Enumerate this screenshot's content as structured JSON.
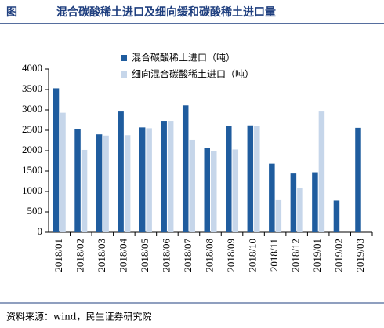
{
  "chart_data": {
    "type": "bar",
    "figure_label": "图",
    "title": "混合碳酸稀土进口及细向缓和碳酸稀土进口量",
    "source": "资料来源：wind，民生证券研究院",
    "categories": [
      "2018/01",
      "2018/02",
      "2018/03",
      "2018/04",
      "2018/05",
      "2018/06",
      "2018/07",
      "2018/08",
      "2018/09",
      "2018/10",
      "2018/11",
      "2018/12",
      "2019/01",
      "2019/02",
      "2019/03"
    ],
    "series": [
      {
        "name": "混合碳酸稀土进口（吨）",
        "color": "#1f5c9e",
        "values": [
          3530,
          2520,
          2400,
          2960,
          2570,
          2730,
          3110,
          2060,
          2600,
          2620,
          1680,
          1440,
          1470,
          780,
          2560
        ]
      },
      {
        "name": "细向混合碳酸稀土进口（吨）",
        "color": "#c6d6ea",
        "values": [
          2930,
          2020,
          2370,
          2380,
          2550,
          2730,
          2270,
          2000,
          2030,
          2600,
          790,
          1080,
          2960,
          null,
          null
        ]
      }
    ],
    "ylim": [
      0,
      4000
    ],
    "yticks": [
      0,
      500,
      1000,
      1500,
      2000,
      2500,
      3000,
      3500,
      4000
    ]
  }
}
